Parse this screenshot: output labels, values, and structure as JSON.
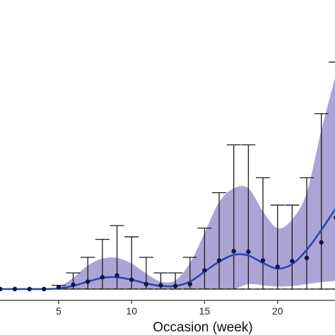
{
  "chart_data": {
    "type": "line",
    "title": "",
    "xlabel": "Occasion (week)",
    "ylabel": "",
    "x_ticks": [
      5,
      10,
      15,
      20
    ],
    "xlim": [
      0,
      24
    ],
    "ylim": [
      0,
      45
    ],
    "grid": false,
    "legend": "none",
    "x": [
      1,
      2,
      3,
      4,
      5,
      6,
      7,
      8,
      9,
      10,
      11,
      12,
      13,
      14,
      15,
      16,
      17,
      18,
      19,
      20,
      21,
      22,
      23,
      24
    ],
    "series": [
      {
        "values": [
          0,
          0,
          0,
          0,
          0.3,
          0.7,
          1.2,
          1.9,
          2.2,
          1.5,
          0.8,
          0.6,
          0.5,
          0.8,
          3.0,
          4.6,
          6.1,
          6.0,
          4.6,
          3.6,
          4.5,
          5.0,
          7.5,
          11.5
        ],
        "error_upper": [
          0,
          0,
          0,
          0,
          0.6,
          2.6,
          5.1,
          8.0,
          10.2,
          8.4,
          5.1,
          2.6,
          2.6,
          5.1,
          9.8,
          15.5,
          23.2,
          23.2,
          17.9,
          13.5,
          13.5,
          17.9,
          28.2,
          36.5
        ],
        "error_lower": [
          0,
          0,
          0,
          0,
          0,
          0,
          0,
          0,
          0,
          0,
          0,
          0,
          0,
          0,
          0,
          0,
          0,
          0,
          0,
          0,
          0,
          0,
          0,
          0
        ]
      }
    ],
    "smooth_fit": {
      "x": [
        1,
        2,
        3,
        4,
        5,
        6,
        7,
        8,
        9,
        10,
        11,
        12,
        13,
        14,
        15,
        16,
        17,
        18,
        19,
        20,
        21,
        22,
        23,
        24
      ],
      "values": [
        0,
        0,
        0,
        0,
        0.1,
        0.5,
        1.2,
        1.8,
        1.9,
        1.5,
        0.9,
        0.5,
        0.5,
        1.2,
        2.8,
        4.4,
        5.5,
        5.4,
        4.2,
        3.3,
        4.0,
        6.3,
        9.5,
        13.0
      ],
      "ci_upper": [
        0,
        0,
        0,
        0,
        0.3,
        1.8,
        3.8,
        4.9,
        5.0,
        4.1,
        2.5,
        1.2,
        1.4,
        4.2,
        9.0,
        14.0,
        16.2,
        16.2,
        12.5,
        9.8,
        11.2,
        15.5,
        25.5,
        34.5
      ],
      "ci_lower": [
        0,
        0,
        0,
        0,
        0,
        0,
        0,
        0,
        0,
        0,
        0,
        0,
        0,
        0,
        0,
        0,
        0,
        0.8,
        0.6,
        0.4,
        0.5,
        0.8,
        1.1,
        1.3
      ]
    },
    "colors": {
      "band": "#9d94cd",
      "fit_line": "#2f46a8",
      "points": "#13134d",
      "error_bars": "#1a1a1a",
      "baseline": "#555555"
    }
  }
}
